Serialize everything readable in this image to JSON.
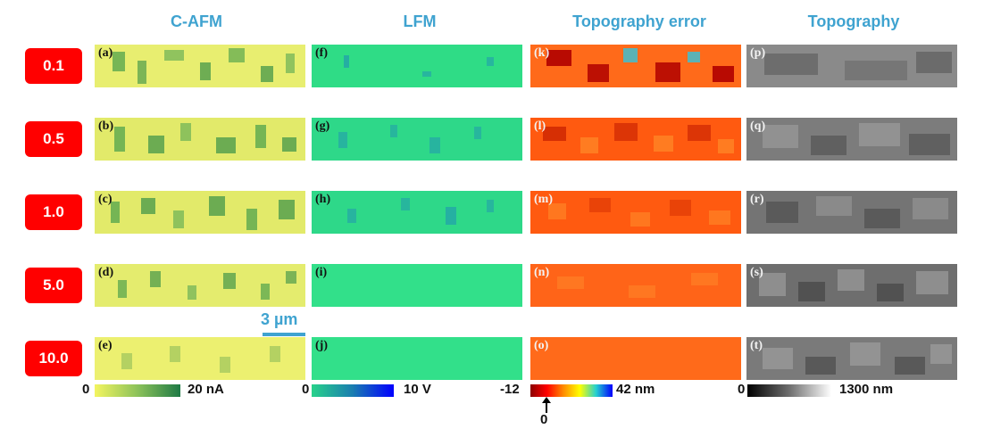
{
  "columns": [
    "C-AFM",
    "LFM",
    "Topography error",
    "Topography"
  ],
  "rows": [
    "0.1",
    "0.5",
    "1.0",
    "5.0",
    "10.0"
  ],
  "panel_labels": [
    [
      "(a)",
      "(f)",
      "(k)",
      "(p)"
    ],
    [
      "(b)",
      "(g)",
      "(l)",
      "(q)"
    ],
    [
      "(c)",
      "(h)",
      "(m)",
      "(r)"
    ],
    [
      "(d)",
      "(i)",
      "(n)",
      "(s)"
    ],
    [
      "(e)",
      "(j)",
      "(o)",
      "(t)"
    ]
  ],
  "scale_bar": "3 µm",
  "colorbars": {
    "cafm": {
      "min": "0",
      "max": "20 nA"
    },
    "lfm": {
      "min": "0",
      "max": "10 V"
    },
    "topo_error": {
      "min": "-12",
      "max": "42 nm",
      "zero_mark": "0"
    },
    "topo": {
      "min": "0",
      "max": "1300 nm"
    }
  },
  "colors": {
    "header": "#3fa3d0",
    "badge": "#ff0000",
    "cafm_base": "#e8ee70",
    "cafm_spot": "#4f9c4c",
    "lfm_base": "#2fdc86",
    "lfm_spot": "#1f8fb6",
    "topo_error_base": "#ff6a1a",
    "topo_error_hot": "#b00000",
    "topo_error_cold": "#33c4dc",
    "topo_base": "#8a8a8a"
  }
}
